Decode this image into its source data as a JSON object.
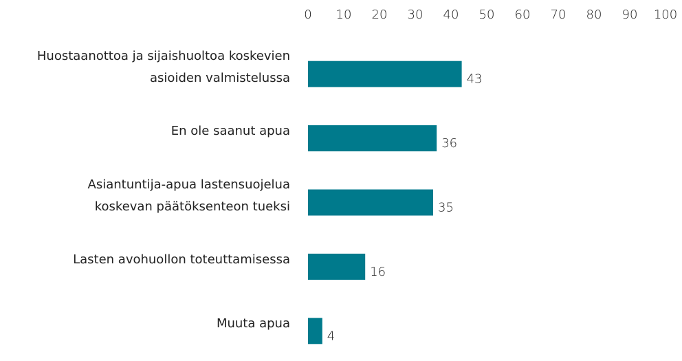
{
  "chart_data": {
    "type": "hbar",
    "categories": [
      "Huostaanottoa ja sijaishuoltoa koskevien\nasioiden valmistelussa",
      "En ole saanut apua",
      "Asiantuntija-apua lastensuojelua\nkoskevan päätöksenteon tueksi",
      "Lasten avohuollon toteuttamisessa",
      "Muuta apua"
    ],
    "values": [
      43,
      36,
      35,
      16,
      4
    ],
    "color": "#007a8c",
    "xlim": [
      0,
      100
    ],
    "xticks": [
      0,
      10,
      20,
      30,
      40,
      50,
      60,
      70,
      80,
      90,
      100
    ],
    "grid": false
  }
}
